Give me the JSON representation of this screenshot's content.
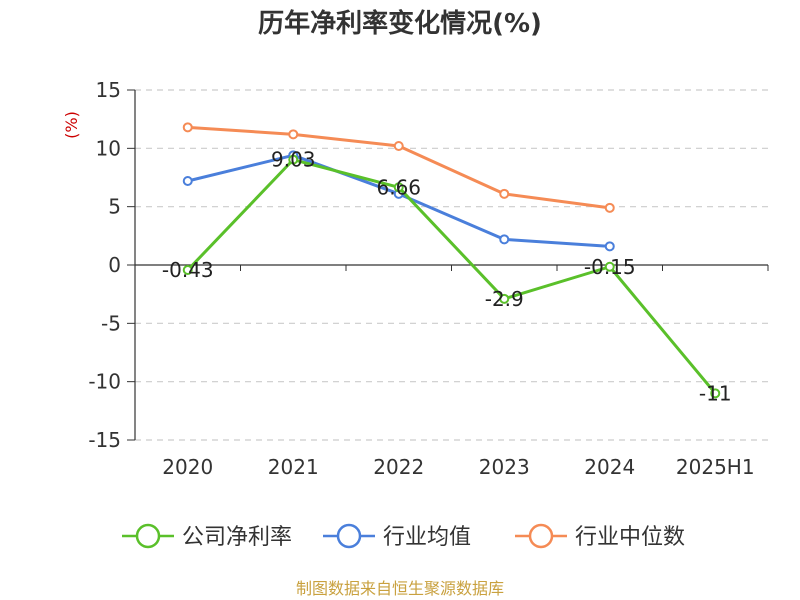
{
  "chart_data": {
    "type": "line",
    "title": "历年净利率变化情况(%)",
    "ylabel": "(%)",
    "xlabel": "",
    "categories": [
      "2020",
      "2021",
      "2022",
      "2023",
      "2024",
      "2025H1"
    ],
    "ylim": [
      -15,
      15
    ],
    "yticks": [
      15,
      10,
      5,
      0,
      -5,
      -10,
      -15
    ],
    "grid": true,
    "legend_position": "bottom",
    "series": [
      {
        "name": "公司净利率",
        "color": "#5ac02a",
        "values": [
          -0.43,
          9.03,
          6.66,
          -2.9,
          -0.15,
          -11
        ],
        "labels": [
          "-0.43",
          "9.03",
          "6.66",
          "-2.9",
          "-0.15",
          "-11"
        ]
      },
      {
        "name": "行业均值",
        "color": "#4a7fdb",
        "values": [
          7.2,
          9.4,
          6.1,
          2.2,
          1.6,
          null
        ]
      },
      {
        "name": "行业中位数",
        "color": "#f58b55",
        "values": [
          11.8,
          11.2,
          10.2,
          6.1,
          4.9,
          null
        ]
      }
    ]
  },
  "footer": {
    "text": "制图数据来自恒生聚源数据库",
    "color": "#c9a13f"
  },
  "ylabel_color": "#cc0000"
}
